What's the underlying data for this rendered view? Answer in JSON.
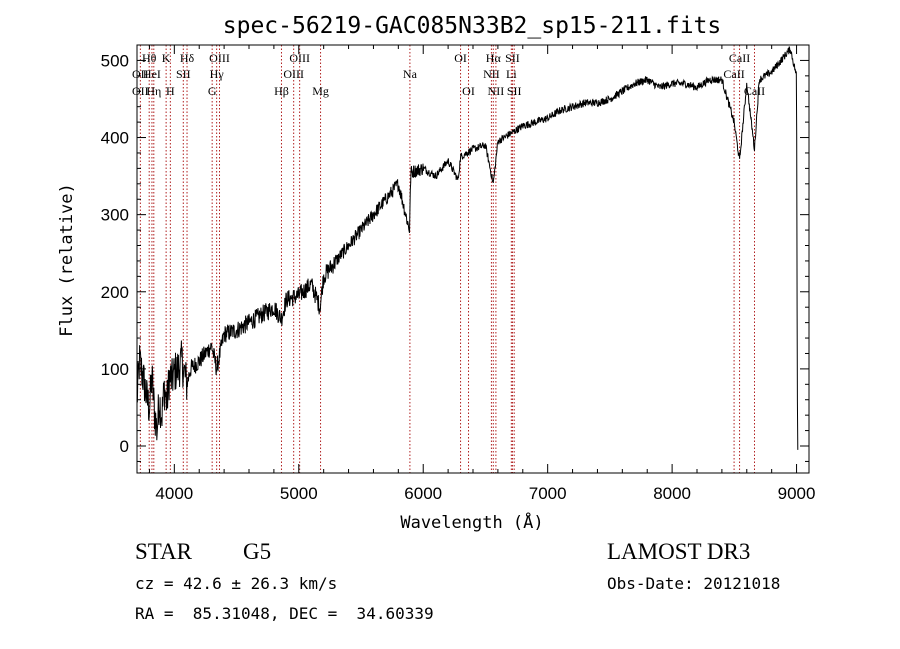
{
  "chart_data": {
    "type": "line",
    "title": "spec-56219-GAC085N33B2_sp15-211.fits",
    "xlabel": "Wavelength (Å)",
    "ylabel": "Flux (relative)",
    "xlim": [
      3700,
      9100
    ],
    "ylim": [
      -35,
      520
    ],
    "xticks": [
      4000,
      5000,
      6000,
      7000,
      8000,
      9000
    ],
    "yticks": [
      0,
      100,
      200,
      300,
      400,
      500
    ],
    "spectrum_anchors": [
      [
        3700,
        60
      ],
      [
        3720,
        110
      ],
      [
        3740,
        95
      ],
      [
        3760,
        80
      ],
      [
        3780,
        60
      ],
      [
        3800,
        50
      ],
      [
        3820,
        90
      ],
      [
        3840,
        45
      ],
      [
        3860,
        20
      ],
      [
        3880,
        60
      ],
      [
        3900,
        40
      ],
      [
        3920,
        75
      ],
      [
        3940,
        55
      ],
      [
        3960,
        90
      ],
      [
        3980,
        85
      ],
      [
        4000,
        95
      ],
      [
        4030,
        100
      ],
      [
        4060,
        110
      ],
      [
        4100,
        80
      ],
      [
        4130,
        100
      ],
      [
        4200,
        110
      ],
      [
        4300,
        130
      ],
      [
        4340,
        100
      ],
      [
        4400,
        145
      ],
      [
        4500,
        150
      ],
      [
        4600,
        160
      ],
      [
        4700,
        170
      ],
      [
        4800,
        180
      ],
      [
        4860,
        165
      ],
      [
        4900,
        190
      ],
      [
        5000,
        195
      ],
      [
        5100,
        210
      ],
      [
        5170,
        180
      ],
      [
        5200,
        220
      ],
      [
        5300,
        240
      ],
      [
        5400,
        260
      ],
      [
        5500,
        280
      ],
      [
        5600,
        300
      ],
      [
        5700,
        320
      ],
      [
        5800,
        340
      ],
      [
        5890,
        280
      ],
      [
        5900,
        355
      ],
      [
        6000,
        360
      ],
      [
        6100,
        350
      ],
      [
        6200,
        370
      ],
      [
        6280,
        345
      ],
      [
        6300,
        375
      ],
      [
        6400,
        385
      ],
      [
        6500,
        390
      ],
      [
        6563,
        340
      ],
      [
        6600,
        395
      ],
      [
        6700,
        405
      ],
      [
        6800,
        415
      ],
      [
        6900,
        420
      ],
      [
        7000,
        425
      ],
      [
        7100,
        435
      ],
      [
        7200,
        440
      ],
      [
        7300,
        445
      ],
      [
        7400,
        445
      ],
      [
        7500,
        450
      ],
      [
        7600,
        460
      ],
      [
        7700,
        470
      ],
      [
        7800,
        475
      ],
      [
        7900,
        465
      ],
      [
        8000,
        470
      ],
      [
        8100,
        470
      ],
      [
        8200,
        465
      ],
      [
        8300,
        475
      ],
      [
        8400,
        475
      ],
      [
        8498,
        420
      ],
      [
        8542,
        370
      ],
      [
        8600,
        470
      ],
      [
        8662,
        385
      ],
      [
        8700,
        475
      ],
      [
        8800,
        485
      ],
      [
        8900,
        505
      ],
      [
        8950,
        515
      ],
      [
        9000,
        480
      ],
      [
        9005,
        100
      ],
      [
        9010,
        -5
      ]
    ],
    "spectral_lines": [
      {
        "label": "Hθ",
        "wavelength": 3798,
        "row": 0
      },
      {
        "label": "OII",
        "wavelength": 3727,
        "row": 1
      },
      {
        "label": "OII",
        "wavelength": 3727,
        "row": 2
      },
      {
        "label": "HeI",
        "wavelength": 3820,
        "row": 1
      },
      {
        "label": "Hη",
        "wavelength": 3835,
        "row": 2
      },
      {
        "label": "K",
        "wavelength": 3934,
        "row": 0
      },
      {
        "label": "SII",
        "wavelength": 4072,
        "row": 1
      },
      {
        "label": "H",
        "wavelength": 3968,
        "row": 2
      },
      {
        "label": "Hδ",
        "wavelength": 4102,
        "row": 0
      },
      {
        "label": "OIII",
        "wavelength": 4363,
        "row": 0
      },
      {
        "label": "Hγ",
        "wavelength": 4340,
        "row": 1
      },
      {
        "label": "G",
        "wavelength": 4304,
        "row": 2
      },
      {
        "label": "OIII",
        "wavelength": 5007,
        "row": 0
      },
      {
        "label": "OIII",
        "wavelength": 4959,
        "row": 1
      },
      {
        "label": "Hβ",
        "wavelength": 4861,
        "row": 2
      },
      {
        "label": "Mg",
        "wavelength": 5175,
        "row": 2
      },
      {
        "label": "Na",
        "wavelength": 5893,
        "row": 1
      },
      {
        "label": "OI",
        "wavelength": 6300,
        "row": 0
      },
      {
        "label": "OI",
        "wavelength": 6364,
        "row": 2
      },
      {
        "label": "Hα",
        "wavelength": 6563,
        "row": 0
      },
      {
        "label": "NII",
        "wavelength": 6548,
        "row": 1
      },
      {
        "label": "NII",
        "wavelength": 6584,
        "row": 2
      },
      {
        "label": "SII",
        "wavelength": 6717,
        "row": 0
      },
      {
        "label": "Li",
        "wavelength": 6708,
        "row": 1
      },
      {
        "label": "SII",
        "wavelength": 6731,
        "row": 2
      },
      {
        "label": "CaII",
        "wavelength": 8542,
        "row": 0
      },
      {
        "label": "CaII",
        "wavelength": 8498,
        "row": 1
      },
      {
        "label": "CaII",
        "wavelength": 8662,
        "row": 2
      }
    ]
  },
  "info": {
    "object_class": "STAR",
    "subclass": "G5",
    "survey": "LAMOST DR3",
    "cz": "cz = 42.6 ± 26.3 km/s",
    "obs_date": "Obs-Date: 20121018",
    "coords": "RA =  85.31048, DEC =  34.60339"
  },
  "colors": {
    "spectrum": "#000000",
    "line_markers": "#b02020",
    "axes": "#000000"
  }
}
